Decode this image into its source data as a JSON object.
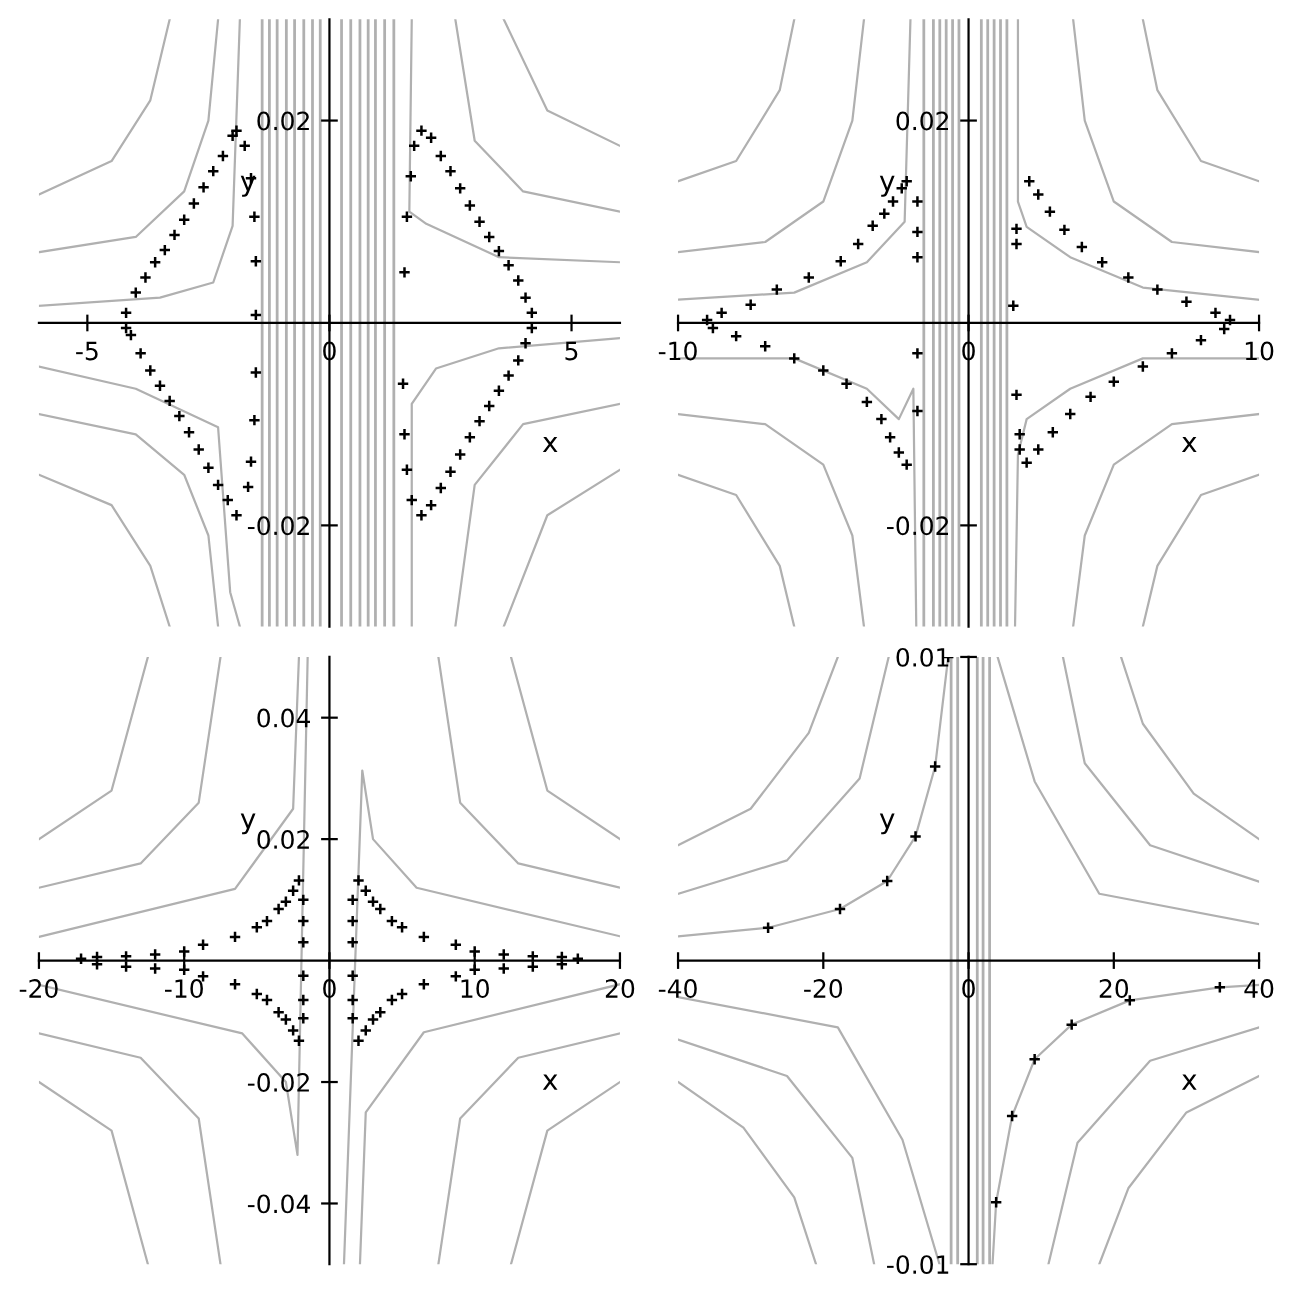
{
  "chart_data": [
    {
      "type": "scatter",
      "xlabel": "x",
      "ylabel": "y",
      "xlim": [
        -6,
        6
      ],
      "ylim": [
        -0.03,
        0.03
      ],
      "xticks": [
        -5,
        0,
        5
      ],
      "yticks": [
        -0.02,
        0.02
      ],
      "grid": false,
      "legend": false,
      "ref_lines": [
        {
          "axis": "x",
          "value": -1.39,
          "color": "#b0b0b0"
        },
        {
          "axis": "x",
          "value": -1.24,
          "color": "#b0b0b0"
        },
        {
          "axis": "x",
          "value": -1.08,
          "color": "#b0b0b0"
        },
        {
          "axis": "x",
          "value": -0.89,
          "color": "#b0b0b0"
        },
        {
          "axis": "x",
          "value": -0.72,
          "color": "#b0b0b0"
        },
        {
          "axis": "x",
          "value": -0.53,
          "color": "#b0b0b0"
        },
        {
          "axis": "x",
          "value": -0.35,
          "color": "#b0b0b0"
        },
        {
          "axis": "x",
          "value": -0.19,
          "color": "#b0b0b0"
        },
        {
          "axis": "x",
          "value": 0.25,
          "color": "#b0b0b0"
        },
        {
          "axis": "x",
          "value": 0.44,
          "color": "#b0b0b0"
        },
        {
          "axis": "x",
          "value": 0.63,
          "color": "#b0b0b0"
        },
        {
          "axis": "x",
          "value": 0.8,
          "color": "#b0b0b0"
        },
        {
          "axis": "x",
          "value": 0.95,
          "color": "#b0b0b0"
        },
        {
          "axis": "x",
          "value": 1.14,
          "color": "#b0b0b0"
        },
        {
          "axis": "x",
          "value": 1.33,
          "color": "#b0b0b0"
        }
      ],
      "series": [
        {
          "type": "line",
          "color": "#b0b0b0",
          "x": [
            -6,
            -3.5,
            -2.4,
            -2.0,
            -1.85
          ],
          "values": [
            0.0017,
            0.0025,
            0.004,
            0.0096,
            0.03
          ]
        },
        {
          "type": "line",
          "color": "#b0b0b0",
          "x": [
            -6,
            -4,
            -3,
            -2.5,
            -2.3
          ],
          "values": [
            0.007,
            0.0085,
            0.013,
            0.02,
            0.03
          ]
        },
        {
          "type": "line",
          "color": "#b0b0b0",
          "x": [
            -6,
            -4.5,
            -3.7,
            -3.3
          ],
          "values": [
            0.0127,
            0.016,
            0.022,
            0.03
          ]
        },
        {
          "type": "line",
          "color": "#b0b0b0",
          "x": [
            -6,
            -4,
            -2.3,
            -2.05,
            -1.85
          ],
          "values": [
            -0.0043,
            -0.0065,
            -0.0103,
            -0.0266,
            -0.03
          ]
        },
        {
          "type": "line",
          "color": "#b0b0b0",
          "x": [
            -6,
            -4,
            -3,
            -2.5,
            -2.3
          ],
          "values": [
            -0.009,
            -0.011,
            -0.015,
            -0.021,
            -0.03
          ]
        },
        {
          "type": "line",
          "color": "#b0b0b0",
          "x": [
            -6,
            -4.5,
            -3.7,
            -3.3
          ],
          "values": [
            -0.015,
            -0.018,
            -0.024,
            -0.03
          ]
        },
        {
          "type": "line",
          "color": "#b0b0b0",
          "x": [
            1.7,
            1.65,
            2.0,
            3.5,
            6
          ],
          "values": [
            0.03,
            0.011,
            0.0098,
            0.0065,
            0.006
          ]
        },
        {
          "type": "line",
          "color": "#b0b0b0",
          "x": [
            6,
            4,
            3,
            2.6
          ],
          "values": [
            0.011,
            0.013,
            0.018,
            0.03
          ]
        },
        {
          "type": "line",
          "color": "#b0b0b0",
          "x": [
            6,
            4.5,
            3.6
          ],
          "values": [
            0.0175,
            0.021,
            0.03
          ]
        },
        {
          "type": "line",
          "color": "#b0b0b0",
          "x": [
            6,
            3.5,
            2.2,
            1.7,
            1.7
          ],
          "values": [
            -0.0015,
            -0.0025,
            -0.0045,
            -0.008,
            -0.03
          ]
        },
        {
          "type": "line",
          "color": "#b0b0b0",
          "x": [
            6,
            4,
            3,
            2.6
          ],
          "values": [
            -0.008,
            -0.01,
            -0.016,
            -0.03
          ]
        },
        {
          "type": "line",
          "color": "#b0b0b0",
          "x": [
            6,
            4.5,
            3.6
          ],
          "values": [
            -0.0145,
            -0.019,
            -0.03
          ]
        },
        {
          "type": "scatter",
          "color": "#000000",
          "marker": "cross",
          "x": [
            -4.2,
            -4.0,
            -3.8,
            -3.6,
            -3.4,
            -3.2,
            -3.0,
            -2.8,
            -2.6,
            -2.4,
            -2.2,
            -2.0,
            -1.92,
            -1.75,
            -1.62,
            -1.55,
            -1.52,
            -1.52,
            -1.52,
            -1.55,
            -1.62,
            -1.68,
            -1.92,
            -2.1,
            -2.3,
            -2.5,
            -2.7,
            -2.9,
            -3.1,
            -3.3,
            -3.5,
            -3.7,
            -3.9,
            -4.1,
            -4.2
          ],
          "values": [
            0.001,
            0.003,
            0.0045,
            0.006,
            0.0072,
            0.0087,
            0.0102,
            0.0118,
            0.0134,
            0.015,
            0.0165,
            0.0185,
            0.019,
            0.0175,
            0.0143,
            0.0105,
            0.0061,
            0.0008,
            -0.0049,
            -0.0096,
            -0.0137,
            -0.0162,
            -0.019,
            -0.0175,
            -0.016,
            -0.0143,
            -0.0125,
            -0.0108,
            -0.0092,
            -0.0077,
            -0.0062,
            -0.0047,
            -0.003,
            -0.0012,
            -0.0005
          ]
        },
        {
          "type": "scatter",
          "color": "#000000",
          "marker": "cross",
          "x": [
            1.9,
            2.1,
            2.3,
            2.5,
            2.7,
            2.9,
            3.1,
            3.3,
            3.5,
            3.7,
            3.9,
            4.05,
            4.18,
            1.75,
            1.68,
            1.6,
            1.55,
            1.52,
            1.55,
            1.6,
            1.7,
            1.9,
            2.1,
            2.3,
            2.5,
            2.7,
            2.9,
            3.1,
            3.3,
            3.5,
            3.7,
            3.9,
            4.05,
            4.18
          ],
          "values": [
            0.019,
            0.0183,
            0.0165,
            0.015,
            0.0133,
            0.0116,
            0.01,
            0.0085,
            0.0071,
            0.0057,
            0.0042,
            0.0025,
            0.001,
            0.0175,
            0.0145,
            0.0105,
            0.005,
            -0.006,
            -0.011,
            -0.0145,
            -0.0175,
            -0.019,
            -0.018,
            -0.0163,
            -0.0147,
            -0.013,
            -0.0113,
            -0.0097,
            -0.0082,
            -0.0067,
            -0.0052,
            -0.0037,
            -0.002,
            -0.0005
          ]
        }
      ]
    },
    {
      "type": "scatter",
      "xlabel": "x",
      "ylabel": "y",
      "xlim": [
        -10,
        10
      ],
      "ylim": [
        -0.03,
        0.03
      ],
      "xticks": [
        -10,
        0,
        10
      ],
      "yticks": [
        -0.02,
        0.02
      ],
      "grid": false,
      "legend": false,
      "ref_lines": [
        {
          "axis": "x",
          "value": -1.54,
          "color": "#b0b0b0"
        },
        {
          "axis": "x",
          "value": -1.21,
          "color": "#b0b0b0"
        },
        {
          "axis": "x",
          "value": -0.99,
          "color": "#b0b0b0"
        },
        {
          "axis": "x",
          "value": -0.77,
          "color": "#b0b0b0"
        },
        {
          "axis": "x",
          "value": -0.55,
          "color": "#b0b0b0"
        },
        {
          "axis": "x",
          "value": -0.33,
          "color": "#b0b0b0"
        },
        {
          "axis": "x",
          "value": 0.44,
          "color": "#b0b0b0"
        },
        {
          "axis": "x",
          "value": 0.66,
          "color": "#b0b0b0"
        },
        {
          "axis": "x",
          "value": 0.88,
          "color": "#b0b0b0"
        },
        {
          "axis": "x",
          "value": 1.1,
          "color": "#b0b0b0"
        },
        {
          "axis": "x",
          "value": 1.32,
          "color": "#b0b0b0"
        }
      ],
      "series": [
        {
          "type": "line",
          "color": "#b0b0b0",
          "x": [
            -10,
            -6,
            -3.5,
            -2.2,
            -2.0
          ],
          "values": [
            0.0023,
            0.003,
            0.006,
            0.01,
            0.03
          ]
        },
        {
          "type": "line",
          "color": "#b0b0b0",
          "x": [
            -10,
            -7,
            -5,
            -4,
            -3.6
          ],
          "values": [
            0.007,
            0.008,
            0.012,
            0.02,
            0.03
          ]
        },
        {
          "type": "line",
          "color": "#b0b0b0",
          "x": [
            -10,
            -8,
            -6.5,
            -6
          ],
          "values": [
            0.014,
            0.016,
            0.023,
            0.03
          ]
        },
        {
          "type": "line",
          "color": "#b0b0b0",
          "x": [
            -10,
            -6,
            -3.5,
            -2.4,
            -1.9,
            -1.8
          ],
          "values": [
            -0.0035,
            -0.0035,
            -0.0065,
            -0.0095,
            -0.0065,
            -0.03
          ]
        },
        {
          "type": "line",
          "color": "#b0b0b0",
          "x": [
            -10,
            -7,
            -5,
            -4,
            -3.6
          ],
          "values": [
            -0.009,
            -0.01,
            -0.014,
            -0.021,
            -0.03
          ]
        },
        {
          "type": "line",
          "color": "#b0b0b0",
          "x": [
            -10,
            -8,
            -6.5,
            -6
          ],
          "values": [
            -0.015,
            -0.017,
            -0.024,
            -0.03
          ]
        },
        {
          "type": "line",
          "color": "#b0b0b0",
          "x": [
            1.7,
            1.7,
            2.0,
            3.5,
            6,
            10
          ],
          "values": [
            0.03,
            0.012,
            0.0095,
            0.0065,
            0.0035,
            0.0023
          ]
        },
        {
          "type": "line",
          "color": "#b0b0b0",
          "x": [
            10,
            7,
            5,
            4,
            3.6
          ],
          "values": [
            0.007,
            0.008,
            0.012,
            0.02,
            0.03
          ]
        },
        {
          "type": "line",
          "color": "#b0b0b0",
          "x": [
            10,
            8,
            6.5,
            6
          ],
          "values": [
            0.014,
            0.016,
            0.023,
            0.03
          ]
        },
        {
          "type": "line",
          "color": "#b0b0b0",
          "x": [
            10,
            6,
            3.5,
            2.0,
            1.7,
            1.6
          ],
          "values": [
            -0.0035,
            -0.0035,
            -0.0065,
            -0.0095,
            -0.013,
            -0.03
          ]
        },
        {
          "type": "line",
          "color": "#b0b0b0",
          "x": [
            10,
            7,
            5,
            4,
            3.6
          ],
          "values": [
            -0.009,
            -0.01,
            -0.014,
            -0.021,
            -0.03
          ]
        },
        {
          "type": "line",
          "color": "#b0b0b0",
          "x": [
            10,
            8,
            6.5,
            6
          ],
          "values": [
            -0.015,
            -0.017,
            -0.024,
            -0.03
          ]
        },
        {
          "type": "scatter",
          "color": "#000000",
          "marker": "cross",
          "x": [
            -9.0,
            -8.5,
            -7.5,
            -6.6,
            -5.5,
            -4.4,
            -3.8,
            -3.3,
            -2.9,
            -2.6,
            -2.3,
            -2.13,
            -1.76,
            -1.76,
            -1.76,
            -1.76,
            -1.76,
            -2.13,
            -2.4,
            -2.7,
            -3.0,
            -3.5,
            -4.2,
            -5.0,
            -6.0,
            -7.0,
            -8.0,
            -8.8
          ],
          "values": [
            0.0003,
            0.001,
            0.0018,
            0.0033,
            0.0045,
            0.0061,
            0.0078,
            0.0096,
            0.0108,
            0.012,
            0.0133,
            0.014,
            0.012,
            0.009,
            0.0065,
            -0.003,
            -0.0087,
            -0.014,
            -0.0128,
            -0.0113,
            -0.0095,
            -0.0078,
            -0.006,
            -0.0047,
            -0.0035,
            -0.0023,
            -0.0013,
            -0.0005
          ]
        },
        {
          "type": "scatter",
          "color": "#000000",
          "marker": "cross",
          "x": [
            2.09,
            2.4,
            2.8,
            3.3,
            3.9,
            4.6,
            5.5,
            6.5,
            7.5,
            8.5,
            9.0,
            1.65,
            1.65,
            1.54,
            1.65,
            1.76,
            1.76,
            2.0,
            2.4,
            2.9,
            3.5,
            4.2,
            5.0,
            6.0,
            7.0,
            8.0,
            8.8
          ],
          "values": [
            0.014,
            0.0127,
            0.011,
            0.0092,
            0.0075,
            0.006,
            0.0045,
            0.0033,
            0.0021,
            0.001,
            0.0003,
            0.0093,
            0.0078,
            0.0017,
            -0.0071,
            -0.011,
            -0.0125,
            -0.0138,
            -0.0125,
            -0.0108,
            -0.009,
            -0.0073,
            -0.0058,
            -0.0043,
            -0.003,
            -0.0017,
            -0.0006
          ]
        }
      ]
    },
    {
      "type": "scatter",
      "xlabel": "x",
      "ylabel": "y",
      "xlim": [
        -20,
        20
      ],
      "ylim": [
        -0.05,
        0.05
      ],
      "xticks": [
        -20,
        -10,
        0,
        10,
        20
      ],
      "yticks": [
        -0.04,
        -0.02,
        0.02,
        0.04
      ],
      "grid": false,
      "legend": false,
      "series": [
        {
          "type": "line",
          "color": "#b0b0b0",
          "x": [
            -20,
            -6.5,
            -2.5,
            -2.1
          ],
          "values": [
            0.0039,
            0.0118,
            0.025,
            0.05
          ]
        },
        {
          "type": "line",
          "color": "#b0b0b0",
          "x": [
            -20,
            -13,
            -9,
            -7.5
          ],
          "values": [
            0.012,
            0.016,
            0.026,
            0.05
          ]
        },
        {
          "type": "line",
          "color": "#b0b0b0",
          "x": [
            -20,
            -15,
            -12.5
          ],
          "values": [
            0.02,
            0.028,
            0.05
          ]
        },
        {
          "type": "line",
          "color": "#b0b0b0",
          "x": [
            -20,
            -6,
            -3,
            -2.2,
            -1.5
          ],
          "values": [
            -0.004,
            -0.012,
            -0.02,
            -0.032,
            0.05
          ]
        },
        {
          "type": "line",
          "color": "#b0b0b0",
          "x": [
            -20,
            -13,
            -9,
            -7.5
          ],
          "values": [
            -0.012,
            -0.016,
            -0.026,
            -0.05
          ]
        },
        {
          "type": "line",
          "color": "#b0b0b0",
          "x": [
            -20,
            -15,
            -12.5
          ],
          "values": [
            -0.02,
            -0.028,
            -0.05
          ]
        },
        {
          "type": "line",
          "color": "#b0b0b0",
          "x": [
            20,
            6,
            3,
            2.26,
            1.0
          ],
          "values": [
            0.004,
            0.012,
            0.02,
            0.0313,
            -0.05
          ]
        },
        {
          "type": "line",
          "color": "#b0b0b0",
          "x": [
            20,
            13,
            9,
            7.5
          ],
          "values": [
            0.012,
            0.016,
            0.026,
            0.05
          ]
        },
        {
          "type": "line",
          "color": "#b0b0b0",
          "x": [
            20,
            15,
            12.5
          ],
          "values": [
            0.02,
            0.028,
            0.05
          ]
        },
        {
          "type": "line",
          "color": "#b0b0b0",
          "x": [
            20,
            6.5,
            2.5,
            2.1
          ],
          "values": [
            -0.0039,
            -0.0118,
            -0.025,
            -0.05
          ]
        },
        {
          "type": "line",
          "color": "#b0b0b0",
          "x": [
            20,
            13,
            9,
            7.5
          ],
          "values": [
            -0.012,
            -0.016,
            -0.026,
            -0.05
          ]
        },
        {
          "type": "line",
          "color": "#b0b0b0",
          "x": [
            20,
            15,
            12.5
          ],
          "values": [
            -0.02,
            -0.028,
            -0.05
          ]
        },
        {
          "type": "scatter",
          "color": "#000000",
          "marker": "cross",
          "x": [
            -17.1,
            -16,
            -14,
            -12,
            -10,
            -8.7,
            -6.5,
            -5,
            -4.3,
            -3.5,
            -3.0,
            -2.5,
            -2.1,
            -1.8,
            -1.8,
            -1.8,
            -1.8,
            -1.8,
            -1.8,
            -2.1,
            -2.5,
            -3.0,
            -3.5,
            -4.3,
            -5,
            -6.5,
            -8.7,
            -10,
            -12,
            -14,
            -16
          ],
          "values": [
            0.0003,
            0.0006,
            0.0007,
            0.001,
            0.0015,
            0.0026,
            0.0039,
            0.0055,
            0.0065,
            0.0085,
            0.0097,
            0.0115,
            0.0132,
            0.01,
            0.0065,
            0.003,
            -0.0025,
            -0.0065,
            -0.0095,
            -0.0132,
            -0.0115,
            -0.0097,
            -0.0085,
            -0.0065,
            -0.0055,
            -0.0039,
            -0.0026,
            -0.0015,
            -0.0013,
            -0.001,
            -0.0006
          ]
        },
        {
          "type": "scatter",
          "color": "#000000",
          "marker": "cross",
          "x": [
            17.1,
            16,
            14,
            12,
            10,
            8.7,
            6.5,
            5,
            4.3,
            3.5,
            3.0,
            2.5,
            2.0,
            1.6,
            1.6,
            1.6,
            1.6,
            1.6,
            1.6,
            2.0,
            2.5,
            3.0,
            3.5,
            4.3,
            5,
            6.5,
            8.7,
            10,
            12,
            14,
            16
          ],
          "values": [
            0.0003,
            0.0006,
            0.0007,
            0.001,
            0.0015,
            0.0026,
            0.0039,
            0.0055,
            0.0065,
            0.0085,
            0.0097,
            0.0115,
            0.0132,
            0.01,
            0.0065,
            0.003,
            -0.0025,
            -0.0065,
            -0.0095,
            -0.0132,
            -0.0115,
            -0.0097,
            -0.0085,
            -0.0065,
            -0.0055,
            -0.0039,
            -0.0026,
            -0.0015,
            -0.0013,
            -0.001,
            -0.0006
          ]
        }
      ]
    },
    {
      "type": "scatter",
      "xlabel": "x",
      "ylabel": "y",
      "xlim": [
        -40,
        40
      ],
      "ylim": [
        -0.01,
        0.01
      ],
      "xticks": [
        -40,
        -20,
        0,
        20,
        40
      ],
      "yticks": [
        -0.01,
        0.01
      ],
      "grid": false,
      "legend": false,
      "ref_lines": [
        {
          "axis": "x",
          "value": -2.4,
          "color": "#b0b0b0"
        },
        {
          "axis": "x",
          "value": -1.5,
          "color": "#b0b0b0"
        },
        {
          "axis": "x",
          "value": 1.2,
          "color": "#b0b0b0"
        },
        {
          "axis": "x",
          "value": 2.0,
          "color": "#b0b0b0"
        },
        {
          "axis": "x",
          "value": 2.9,
          "color": "#b0b0b0"
        }
      ],
      "series": [
        {
          "type": "line",
          "color": "#b0b0b0",
          "x": [
            -40,
            -27.6,
            -17.7,
            -11.2,
            -7.3,
            -4.6,
            -2.8
          ],
          "values": [
            0.0008,
            0.00108,
            0.0017,
            0.00262,
            0.00409,
            0.00639,
            0.01
          ]
        },
        {
          "type": "line",
          "color": "#b0b0b0",
          "x": [
            -40,
            -25,
            -15,
            -11
          ],
          "values": [
            0.0022,
            0.0033,
            0.006,
            0.01
          ]
        },
        {
          "type": "line",
          "color": "#b0b0b0",
          "x": [
            -40,
            -30,
            -22,
            -18
          ],
          "values": [
            0.0038,
            0.005,
            0.0075,
            0.01
          ]
        },
        {
          "type": "line",
          "color": "#b0b0b0",
          "x": [
            40,
            18,
            9.1,
            4
          ],
          "values": [
            0.0012,
            0.0022,
            0.0059,
            0.01
          ]
        },
        {
          "type": "line",
          "color": "#b0b0b0",
          "x": [
            40,
            25,
            16,
            13
          ],
          "values": [
            0.0026,
            0.0038,
            0.0065,
            0.01
          ]
        },
        {
          "type": "line",
          "color": "#b0b0b0",
          "x": [
            40,
            31,
            24,
            21
          ],
          "values": [
            0.004,
            0.0055,
            0.0078,
            0.01
          ]
        },
        {
          "type": "line",
          "color": "#b0b0b0",
          "x": [
            -40,
            -18,
            -9.1,
            -4
          ],
          "values": [
            -0.0012,
            -0.0022,
            -0.0059,
            -0.01
          ]
        },
        {
          "type": "line",
          "color": "#b0b0b0",
          "x": [
            -40,
            -25,
            -16,
            -13
          ],
          "values": [
            -0.0026,
            -0.0038,
            -0.0065,
            -0.01
          ]
        },
        {
          "type": "line",
          "color": "#b0b0b0",
          "x": [
            -40,
            -31,
            -24,
            -21
          ],
          "values": [
            -0.004,
            -0.0055,
            -0.0078,
            -0.01
          ]
        },
        {
          "type": "line",
          "color": "#b0b0b0",
          "x": [
            3.3,
            3.8,
            6.0,
            9.1,
            14.2,
            22.2,
            34.6,
            40
          ],
          "values": [
            -0.01,
            -0.00796,
            -0.00512,
            -0.00325,
            -0.00211,
            -0.00131,
            -0.00088,
            -0.0008
          ]
        },
        {
          "type": "line",
          "color": "#b0b0b0",
          "x": [
            40,
            25,
            15,
            11
          ],
          "values": [
            -0.0022,
            -0.0033,
            -0.006,
            -0.01
          ]
        },
        {
          "type": "line",
          "color": "#b0b0b0",
          "x": [
            40,
            30,
            22,
            18
          ],
          "values": [
            -0.0038,
            -0.005,
            -0.0075,
            -0.01
          ]
        },
        {
          "type": "scatter",
          "color": "#000000",
          "marker": "cross",
          "x": [
            -27.6,
            -17.7,
            -11.2,
            -7.3,
            -4.6,
            -2.8,
            3.8,
            6.0,
            9.1,
            14.2,
            22.2,
            34.6
          ],
          "values": [
            0.00108,
            0.0017,
            0.00262,
            0.00409,
            0.00639,
            0.01,
            -0.00796,
            -0.00512,
            -0.00325,
            -0.00211,
            -0.00131,
            -0.00088
          ]
        }
      ]
    }
  ]
}
